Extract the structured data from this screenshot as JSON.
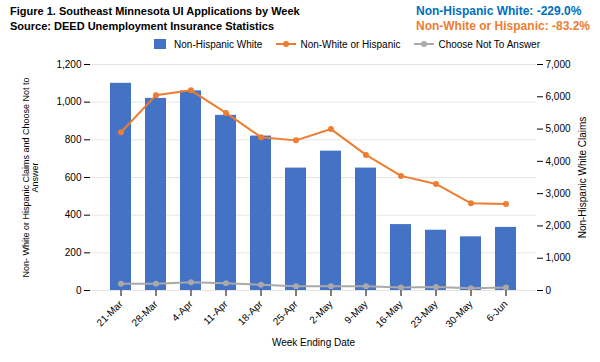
{
  "chart_data": {
    "type": "bar",
    "title": "Figure 1. Southeast Minnesota UI Applications by Week",
    "subtitle": "Source: DEED Unemployment Insurance Statistics",
    "annotations": [
      {
        "text": "Non-Hispanic White: -229.0%",
        "color": "#0070C0"
      },
      {
        "text": "Non-White or Hispanic: -83.2%",
        "color": "#ED7D31"
      }
    ],
    "x_label": "Week Ending Date",
    "y_label": "Non- White or Hispanic Claims and Choose Not to\nAnswer",
    "y2_label": "Non-Hispanic White Claims",
    "categories": [
      "21-Mar",
      "28-Mar",
      "4-Apr",
      "11-Apr",
      "18-Apr",
      "25-Apr",
      "2-May",
      "9-May",
      "16-May",
      "23-May",
      "30-May",
      "6-Jun"
    ],
    "series": [
      {
        "name": "Non-Hispanic White",
        "type": "bar",
        "color": "#4472C4",
        "values": [
          1100,
          1020,
          1060,
          930,
          820,
          650,
          740,
          650,
          350,
          320,
          285,
          335
        ]
      },
      {
        "name": "Non-White or Hispanic",
        "type": "line",
        "marker": "circle",
        "axis": "y2",
        "color": "#ED7D31",
        "values": [
          4900,
          6050,
          6200,
          5500,
          4750,
          4650,
          5000,
          4200,
          3550,
          3300,
          2700,
          2680
        ]
      },
      {
        "name": "Choose Not To Answer",
        "type": "line",
        "marker": "circle",
        "axis": "y2",
        "color": "#A9A9A9",
        "values": [
          210,
          210,
          255,
          225,
          180,
          135,
          135,
          135,
          95,
          105,
          68,
          90
        ]
      }
    ],
    "ylim": [
      0,
      1200
    ],
    "yticks": [
      0,
      200,
      400,
      600,
      800,
      {
        "value": 1000,
        "label": "1,000"
      },
      {
        "value": 1200,
        "label": "1,200"
      }
    ],
    "y2lim": [
      0,
      7000
    ],
    "y2ticks": [
      0,
      {
        "value": 1000,
        "label": "1,000"
      },
      {
        "value": 2000,
        "label": "2,000"
      },
      {
        "value": 3000,
        "label": "3,000"
      },
      {
        "value": 4000,
        "label": "4,000"
      },
      {
        "value": 5000,
        "label": "5,000"
      },
      {
        "value": 6000,
        "label": "6,000"
      },
      {
        "value": 7000,
        "label": "7,000"
      }
    ],
    "grid": true,
    "legend": "top"
  }
}
